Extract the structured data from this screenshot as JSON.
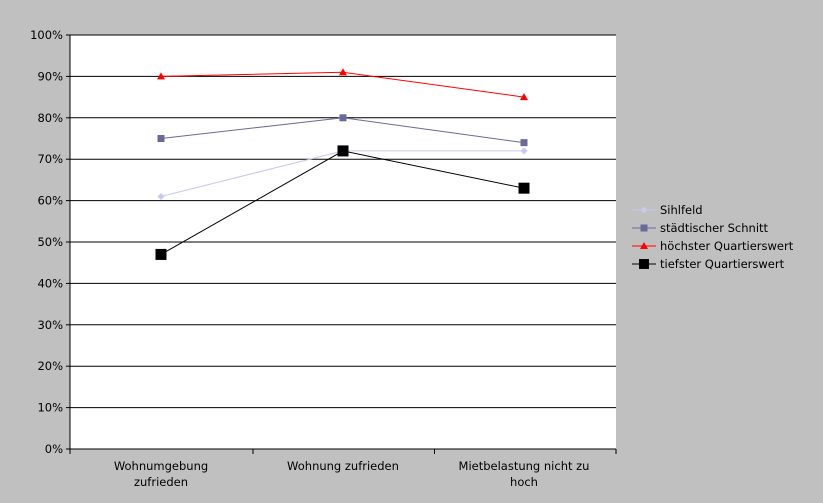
{
  "chart_data": {
    "type": "line",
    "categories": [
      [
        "Wohnumgebung",
        "zufrieden"
      ],
      [
        "Wohnung zufrieden"
      ],
      [
        "Mietbelastung nicht zu",
        "hoch"
      ]
    ],
    "y_ticks": [
      "0%",
      "10%",
      "20%",
      "30%",
      "40%",
      "50%",
      "60%",
      "70%",
      "80%",
      "90%",
      "100%"
    ],
    "ylim": [
      0,
      100
    ],
    "grid": true,
    "legend_position": "right",
    "series": [
      {
        "name": "Sihlfeld",
        "values": [
          61,
          72,
          72
        ],
        "color": "#c8c8f0",
        "marker": "diamond"
      },
      {
        "name": "städtischer Schnitt",
        "values": [
          75,
          80,
          74
        ],
        "color": "#6a6a9a",
        "marker": "square"
      },
      {
        "name": "höchster Quartierswert",
        "values": [
          90,
          91,
          85
        ],
        "color": "#ff0000",
        "marker": "triangle"
      },
      {
        "name": "tiefster Quartierswert",
        "values": [
          47,
          72,
          63
        ],
        "color": "#000000",
        "marker": "bigsquare"
      }
    ]
  }
}
